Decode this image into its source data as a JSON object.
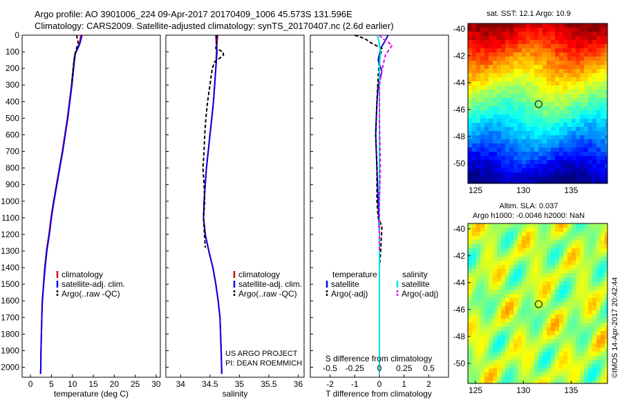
{
  "header": {
    "line1": "Argo profile: AO 3901006_224 09-Apr-2017 20170409_1006 45.573S 131.596E",
    "line2": "Climatology: CARS2009. Satellite-adjusted climatology: synTS_20170407.nc (2.6d earlier)"
  },
  "chart_data": [
    {
      "type": "line",
      "id": "temperature",
      "xlabel": "temperature (deg C)",
      "xlim": [
        -2,
        31
      ],
      "xticks": [
        0,
        5,
        10,
        15,
        20,
        25,
        30
      ],
      "ylim": [
        0,
        2060
      ],
      "yticks": [
        0,
        100,
        200,
        300,
        400,
        500,
        600,
        700,
        800,
        900,
        1000,
        1100,
        1200,
        1300,
        1400,
        1500,
        1600,
        1700,
        1800,
        1900,
        2000
      ],
      "legend": [
        "climatology",
        "satellite-adj. clim.",
        "Argo(..raw -QC)"
      ],
      "series": [
        {
          "name": "climatology",
          "color": "#dd0000",
          "x": [
            12.0,
            11.9,
            11.7,
            11.2,
            10.6,
            10.4,
            10.2,
            10.0,
            9.8,
            9.3,
            8.8,
            8.2,
            7.6,
            6.9,
            6.2,
            5.5,
            4.9,
            4.4,
            3.8,
            3.4,
            3.1,
            2.8,
            2.7,
            2.6,
            2.5,
            2.45,
            2.4
          ],
          "y": [
            0,
            20,
            50,
            80,
            110,
            150,
            200,
            250,
            300,
            400,
            500,
            600,
            700,
            800,
            900,
            1000,
            1100,
            1200,
            1300,
            1400,
            1500,
            1600,
            1700,
            1800,
            1900,
            2000,
            2040
          ]
        },
        {
          "name": "satellite-adj. clim.",
          "color": "#0000ee",
          "x": [
            12.3,
            12.1,
            11.8,
            11.3,
            10.7,
            10.5,
            10.3,
            10.1,
            9.9,
            9.4,
            8.9,
            8.3,
            7.7,
            7.0,
            6.3,
            5.6,
            5.0,
            4.5,
            3.9,
            3.5,
            3.15,
            2.85,
            2.7,
            2.6,
            2.5,
            2.45,
            2.4
          ],
          "y": [
            0,
            20,
            50,
            80,
            110,
            150,
            200,
            250,
            300,
            400,
            500,
            600,
            700,
            800,
            900,
            1000,
            1100,
            1200,
            1300,
            1400,
            1500,
            1600,
            1700,
            1800,
            1900,
            2000,
            2040
          ]
        },
        {
          "name": "Argo(..raw -QC)",
          "color": "#000000",
          "dashed": true,
          "x": [
            11.0,
            11.2,
            11.4,
            11.0,
            10.7,
            10.4,
            10.2,
            10.0,
            9.8
          ],
          "y": [
            0,
            20,
            45,
            80,
            110,
            150,
            200,
            250,
            300
          ]
        }
      ]
    },
    {
      "type": "line",
      "id": "salinity",
      "xlabel": "salinity",
      "xlim": [
        33.75,
        36.1
      ],
      "xticks": [
        34,
        34.5,
        35,
        35.5,
        36
      ],
      "ylim": [
        0,
        2060
      ],
      "legend": [
        "climatology",
        "satellite-adj. clim.",
        "Argo(..raw -QC)"
      ],
      "annotation": [
        "US ARGO PROJECT",
        "PI: DEAN ROEMMICH"
      ],
      "series": [
        {
          "name": "climatology",
          "color": "#dd0000",
          "x": [
            34.63,
            34.62,
            34.61,
            34.6,
            34.58,
            34.56,
            34.53,
            34.5,
            34.47,
            34.44,
            34.42,
            34.4,
            34.39,
            34.42,
            34.48,
            34.55,
            34.6,
            34.64,
            34.67,
            34.69,
            34.7
          ],
          "y": [
            0,
            50,
            100,
            200,
            300,
            400,
            500,
            600,
            700,
            800,
            900,
            1000,
            1100,
            1200,
            1300,
            1400,
            1500,
            1600,
            1700,
            1900,
            2040
          ]
        },
        {
          "name": "satellite-adj. clim.",
          "color": "#0000ee",
          "x": [
            34.6,
            34.61,
            34.62,
            34.6,
            34.58,
            34.56,
            34.53,
            34.5,
            34.47,
            34.44,
            34.42,
            34.4,
            34.39,
            34.42,
            34.48,
            34.55,
            34.6,
            34.64,
            34.67,
            34.69,
            34.7
          ],
          "y": [
            0,
            50,
            100,
            200,
            300,
            400,
            500,
            600,
            700,
            800,
            900,
            1000,
            1100,
            1200,
            1300,
            1400,
            1500,
            1600,
            1700,
            1900,
            2040
          ]
        },
        {
          "name": "Argo(..raw -QC)",
          "color": "#000000",
          "dashed": true,
          "x": [
            34.62,
            34.61,
            34.6,
            34.72,
            34.73,
            34.66,
            34.58,
            34.54,
            34.5,
            34.46,
            34.43,
            34.41,
            34.4,
            34.38,
            34.4,
            34.41,
            34.39,
            34.42
          ],
          "y": [
            0,
            40,
            80,
            100,
            120,
            140,
            160,
            200,
            300,
            400,
            500,
            600,
            700,
            800,
            900,
            1000,
            1100,
            1280
          ]
        }
      ]
    },
    {
      "type": "line",
      "id": "differences",
      "xlabel": "T difference from climatology",
      "xlabel2": "S difference from climatology",
      "xlim_T": [
        -2.8,
        2.8
      ],
      "xticks_T": [
        -2,
        -1,
        0,
        1,
        2
      ],
      "xticks_S": [
        "-0.5",
        "-0.25",
        "0",
        "0.25",
        "0.5"
      ],
      "ylim": [
        0,
        2060
      ],
      "legend": {
        "temperature_header": "temperature",
        "salinity_header": "salinity",
        "temperature": [
          "satellite",
          "Argo(-adj)"
        ],
        "salinity": [
          "satellite",
          "Argo(-adj)"
        ]
      },
      "series": [
        {
          "name": "T satellite",
          "color": "#0000ee",
          "x": [
            0.35,
            0.25,
            0.05,
            -0.05,
            0.1,
            -0.05,
            -0.1,
            -0.15,
            -0.1,
            -0.05,
            0.0,
            0.0,
            0.0,
            0.0,
            0.0
          ],
          "y": [
            0,
            30,
            80,
            150,
            220,
            300,
            400,
            600,
            800,
            1000,
            1200,
            1400,
            1600,
            1800,
            2040
          ]
        },
        {
          "name": "T Argo(-adj)",
          "color": "#000000",
          "dashed": true,
          "x": [
            -1.0,
            -0.6,
            -0.3,
            0.1,
            0.0,
            -0.05,
            -0.1,
            -0.15,
            -0.1,
            -0.1,
            -0.05,
            0.1,
            0.05,
            0.0
          ],
          "y": [
            0,
            20,
            50,
            80,
            150,
            250,
            400,
            600,
            800,
            1000,
            1100,
            1150,
            1300,
            1400
          ]
        },
        {
          "name": "S satellite",
          "color": "#00dddd",
          "x": [
            -0.02,
            0.0,
            0.01,
            0.0,
            0.0,
            0.0,
            0.0,
            0.0,
            0.0
          ],
          "y": [
            0,
            50,
            100,
            200,
            500,
            1000,
            1500,
            1800,
            2040
          ]
        },
        {
          "name": "S Argo(-adj)",
          "color": "#ee00ee",
          "dashed": true,
          "x": [
            0.0,
            0.03,
            0.13,
            0.06,
            0.03,
            0.0,
            0.0,
            0.01,
            0.0,
            0.0
          ],
          "y": [
            0,
            20,
            60,
            120,
            200,
            300,
            500,
            800,
            1000,
            1300
          ]
        }
      ]
    },
    {
      "type": "heatmap",
      "id": "sst_map",
      "title": "sat. SST: 12.1  Argo: 10.9",
      "xticks": [
        125,
        130,
        135
      ],
      "yticks": [
        -40,
        -42,
        -44,
        -46,
        -48,
        -50
      ],
      "xlim": [
        124.2,
        138.8
      ],
      "ylim": [
        -51.5,
        -39.6
      ],
      "marker": {
        "lon": 131.6,
        "lat": -45.6
      }
    },
    {
      "type": "heatmap",
      "id": "sla_map",
      "title": "Altim. SLA: 0.037",
      "subtitle": "Argo h1000: -0.0046 h2000: NaN",
      "xticks": [
        125,
        130,
        135
      ],
      "yticks": [
        -40,
        -42,
        -44,
        -46,
        -48,
        -50
      ],
      "xlim": [
        124.2,
        138.8
      ],
      "ylim": [
        -51.5,
        -39.6
      ],
      "marker": {
        "lon": 131.6,
        "lat": -45.6
      }
    }
  ],
  "footer": {
    "stamp": "©IMOS 14-Apr-2017 20:42:44"
  }
}
